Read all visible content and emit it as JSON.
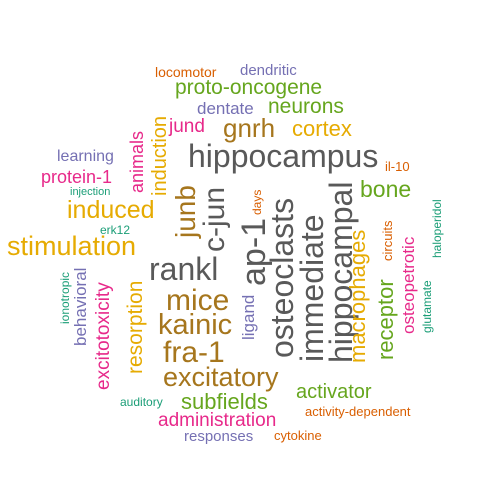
{
  "colors": {
    "gray": "#595959",
    "green": "#66a61e",
    "gold": "#e6ab02",
    "brown": "#a6761d",
    "magenta": "#e7298a",
    "purple": "#7570b3",
    "orange": "#d95f02",
    "teal": "#1b9e77"
  },
  "words": [
    {
      "text": "locomotor",
      "color": "orange"
    },
    {
      "text": "dendritic",
      "color": "purple"
    },
    {
      "text": "proto-oncogene",
      "color": "green"
    },
    {
      "text": "dentate",
      "color": "purple"
    },
    {
      "text": "neurons",
      "color": "green"
    },
    {
      "text": "induction",
      "color": "gold"
    },
    {
      "text": "animals",
      "color": "magenta"
    },
    {
      "text": "jund",
      "color": "magenta"
    },
    {
      "text": "gnrh",
      "color": "brown"
    },
    {
      "text": "cortex",
      "color": "gold"
    },
    {
      "text": "learning",
      "color": "purple"
    },
    {
      "text": "hippocampus",
      "color": "gray"
    },
    {
      "text": "il-10",
      "color": "orange"
    },
    {
      "text": "protein-1",
      "color": "magenta"
    },
    {
      "text": "injection",
      "color": "teal"
    },
    {
      "text": "junb",
      "color": "brown"
    },
    {
      "text": "bone",
      "color": "green"
    },
    {
      "text": "induced",
      "color": "gold"
    },
    {
      "text": "days",
      "color": "orange"
    },
    {
      "text": "haloperidol",
      "color": "teal"
    },
    {
      "text": "c-jun",
      "color": "gray"
    },
    {
      "text": "ap-1",
      "color": "gray"
    },
    {
      "text": "osteoclasts",
      "color": "gray"
    },
    {
      "text": "immediate",
      "color": "gray"
    },
    {
      "text": "hippocampal",
      "color": "gray"
    },
    {
      "text": "circuits",
      "color": "orange"
    },
    {
      "text": "erk12",
      "color": "teal"
    },
    {
      "text": "stimulation",
      "color": "gold"
    },
    {
      "text": "rankl",
      "color": "gray"
    },
    {
      "text": "behavioral",
      "color": "purple"
    },
    {
      "text": "ionotropic",
      "color": "teal"
    },
    {
      "text": "resorption",
      "color": "gold"
    },
    {
      "text": "mice",
      "color": "brown"
    },
    {
      "text": "macrophages",
      "color": "gold"
    },
    {
      "text": "receptor",
      "color": "green"
    },
    {
      "text": "osteopetrotic",
      "color": "magenta"
    },
    {
      "text": "glutamate",
      "color": "teal"
    },
    {
      "text": "ligand",
      "color": "purple"
    },
    {
      "text": "excitotoxicity",
      "color": "magenta"
    },
    {
      "text": "kainic",
      "color": "brown"
    },
    {
      "text": "fra-1",
      "color": "brown"
    },
    {
      "text": "excitatory",
      "color": "brown"
    },
    {
      "text": "activator",
      "color": "green"
    },
    {
      "text": "auditory",
      "color": "teal"
    },
    {
      "text": "subfields",
      "color": "green"
    },
    {
      "text": "activity-dependent",
      "color": "orange"
    },
    {
      "text": "administration",
      "color": "magenta"
    },
    {
      "text": "responses",
      "color": "purple"
    },
    {
      "text": "cytokine",
      "color": "orange"
    }
  ]
}
